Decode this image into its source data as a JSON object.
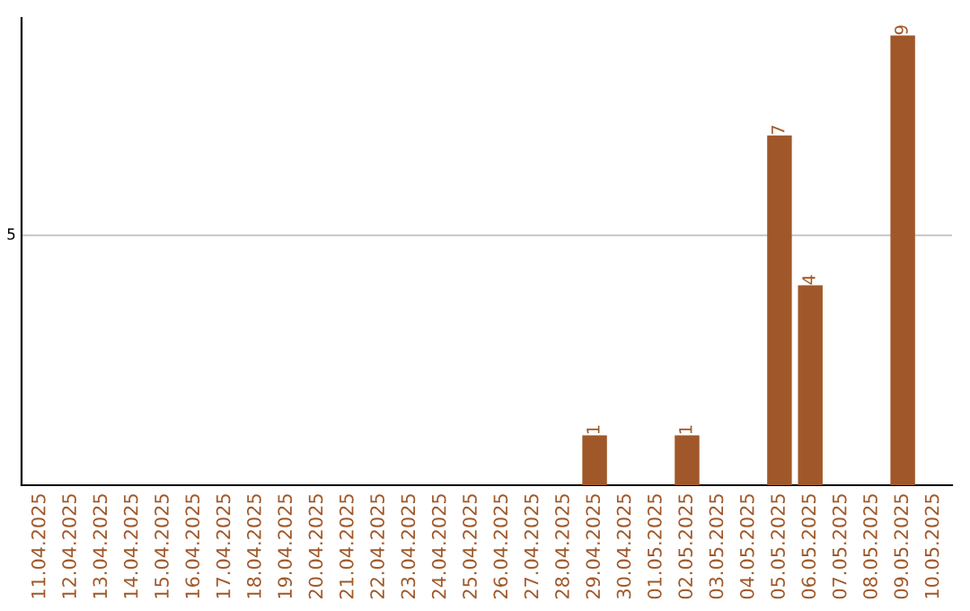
{
  "chart_data": {
    "type": "bar",
    "categories": [
      "11.04.2025",
      "12.04.2025",
      "13.04.2025",
      "14.04.2025",
      "15.04.2025",
      "16.04.2025",
      "17.04.2025",
      "18.04.2025",
      "19.04.2025",
      "20.04.2025",
      "21.04.2025",
      "22.04.2025",
      "23.04.2025",
      "24.04.2025",
      "25.04.2025",
      "26.04.2025",
      "27.04.2025",
      "28.04.2025",
      "29.04.2025",
      "30.04.2025",
      "01.05.2025",
      "02.05.2025",
      "03.05.2025",
      "04.05.2025",
      "05.05.2025",
      "06.05.2025",
      "07.05.2025",
      "08.05.2025",
      "09.05.2025",
      "10.05.2025"
    ],
    "values": [
      null,
      null,
      null,
      null,
      null,
      null,
      null,
      null,
      null,
      null,
      null,
      null,
      null,
      null,
      null,
      null,
      null,
      null,
      1,
      null,
      null,
      1,
      null,
      null,
      7,
      4,
      null,
      null,
      9,
      null
    ],
    "ref_lines": [
      {
        "axis": "y",
        "value": 5,
        "label": "5",
        "color": "#cccccc"
      }
    ],
    "value_labels": [
      null,
      null,
      null,
      null,
      null,
      null,
      null,
      null,
      null,
      null,
      null,
      null,
      null,
      null,
      null,
      null,
      null,
      null,
      "1",
      null,
      null,
      "1",
      null,
      null,
      "7",
      "4",
      null,
      null,
      "9",
      null
    ],
    "color": "#a0582a",
    "ylim": [
      0,
      9.35
    ]
  }
}
